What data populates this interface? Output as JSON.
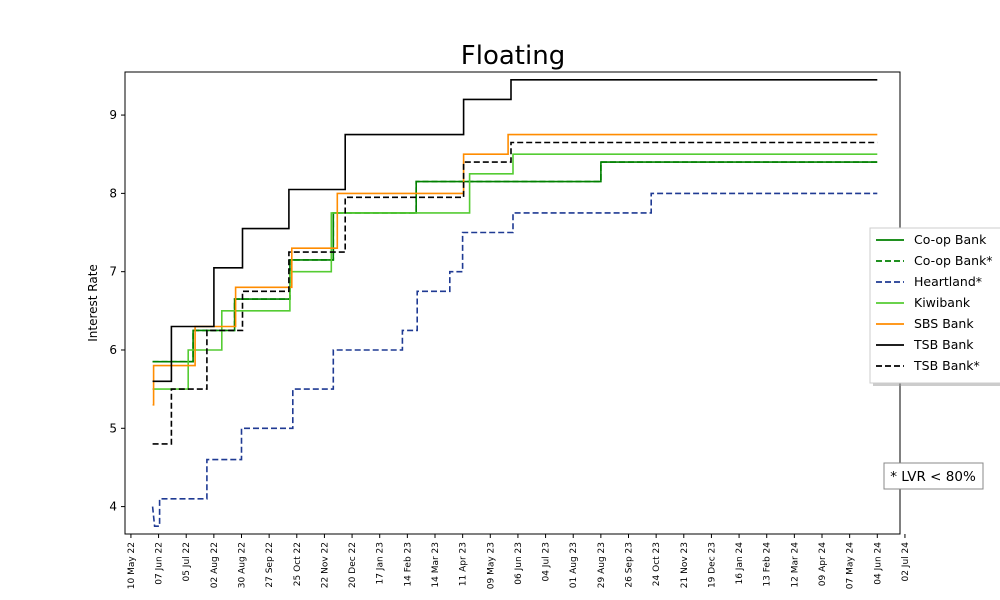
{
  "chart_data": {
    "type": "line",
    "title": "Floating",
    "xlabel": "",
    "ylabel": "Interest Rate",
    "ylim": [
      3.65,
      9.55
    ],
    "yticks": [
      4,
      5,
      6,
      7,
      8,
      9
    ],
    "xlim": [
      "2022-05-04",
      "2024-06-27"
    ],
    "xticks": [
      {
        "date": "2022-05-10",
        "label": "10 May 22"
      },
      {
        "date": "2022-06-07",
        "label": "07 Jun 22"
      },
      {
        "date": "2022-07-05",
        "label": "05 Jul 22"
      },
      {
        "date": "2022-08-02",
        "label": "02 Aug 22"
      },
      {
        "date": "2022-08-30",
        "label": "30 Aug 22"
      },
      {
        "date": "2022-09-27",
        "label": "27 Sep 22"
      },
      {
        "date": "2022-10-25",
        "label": "25 Oct 22"
      },
      {
        "date": "2022-11-22",
        "label": "22 Nov 22"
      },
      {
        "date": "2022-12-20",
        "label": "20 Dec 22"
      },
      {
        "date": "2023-01-17",
        "label": "17 Jan 23"
      },
      {
        "date": "2023-02-14",
        "label": "14 Feb 23"
      },
      {
        "date": "2023-03-14",
        "label": "14 Mar 23"
      },
      {
        "date": "2023-04-11",
        "label": "11 Apr 23"
      },
      {
        "date": "2023-05-09",
        "label": "09 May 23"
      },
      {
        "date": "2023-06-06",
        "label": "06 Jun 23"
      },
      {
        "date": "2023-07-04",
        "label": "04 Jul 23"
      },
      {
        "date": "2023-08-01",
        "label": "01 Aug 23"
      },
      {
        "date": "2023-08-29",
        "label": "29 Aug 23"
      },
      {
        "date": "2023-09-26",
        "label": "26 Sep 23"
      },
      {
        "date": "2023-10-24",
        "label": "24 Oct 23"
      },
      {
        "date": "2023-11-21",
        "label": "21 Nov 23"
      },
      {
        "date": "2023-12-19",
        "label": "19 Dec 23"
      },
      {
        "date": "2024-01-16",
        "label": "16 Jan 24"
      },
      {
        "date": "2024-02-13",
        "label": "13 Feb 24"
      },
      {
        "date": "2024-03-12",
        "label": "12 Mar 24"
      },
      {
        "date": "2024-04-09",
        "label": "09 Apr 24"
      },
      {
        "date": "2024-05-07",
        "label": "07 May 24"
      },
      {
        "date": "2024-06-04",
        "label": "04 Jun 24"
      },
      {
        "date": "2024-07-02",
        "label": "02 Jul 24"
      }
    ],
    "legend_position": "right",
    "note": "* LVR < 80%",
    "series": [
      {
        "name": "Co-op Bank",
        "color": "#008000",
        "dash": "solid",
        "points": [
          [
            "2022-06-01",
            5.85
          ],
          [
            "2022-07-12",
            5.85
          ],
          [
            "2022-07-12",
            6.25
          ],
          [
            "2022-08-23",
            6.25
          ],
          [
            "2022-08-23",
            6.65
          ],
          [
            "2022-10-18",
            6.65
          ],
          [
            "2022-10-18",
            7.15
          ],
          [
            "2022-12-01",
            7.15
          ],
          [
            "2022-12-01",
            7.75
          ],
          [
            "2023-02-23",
            7.75
          ],
          [
            "2023-02-23",
            8.15
          ],
          [
            "2023-04-11",
            8.15
          ],
          [
            "2023-04-11",
            8.15
          ],
          [
            "2023-08-29",
            8.15
          ],
          [
            "2023-08-29",
            8.4
          ],
          [
            "2024-06-04",
            8.4
          ]
        ]
      },
      {
        "name": "Co-op Bank*",
        "color": "#008000",
        "dash": "dashed",
        "points": [
          [
            "2022-06-01",
            5.85
          ],
          [
            "2022-07-12",
            5.85
          ],
          [
            "2022-07-12",
            6.25
          ],
          [
            "2022-08-23",
            6.25
          ],
          [
            "2022-08-23",
            6.65
          ],
          [
            "2022-10-18",
            6.65
          ],
          [
            "2022-10-18",
            7.15
          ],
          [
            "2022-12-01",
            7.15
          ],
          [
            "2022-12-01",
            7.75
          ],
          [
            "2023-02-23",
            7.75
          ],
          [
            "2023-02-23",
            8.15
          ],
          [
            "2023-04-11",
            8.15
          ],
          [
            "2023-08-29",
            8.15
          ],
          [
            "2023-08-29",
            8.4
          ],
          [
            "2024-06-04",
            8.4
          ]
        ]
      },
      {
        "name": "Heartland*",
        "color": "#1f3a93",
        "dash": "dashed",
        "points": [
          [
            "2022-06-01",
            4.0
          ],
          [
            "2022-06-03",
            3.75
          ],
          [
            "2022-06-08",
            3.75
          ],
          [
            "2022-06-08",
            4.1
          ],
          [
            "2022-07-26",
            4.1
          ],
          [
            "2022-07-26",
            4.6
          ],
          [
            "2022-08-30",
            4.6
          ],
          [
            "2022-08-30",
            5.0
          ],
          [
            "2022-10-21",
            5.0
          ],
          [
            "2022-10-21",
            5.5
          ],
          [
            "2022-12-01",
            5.5
          ],
          [
            "2022-12-01",
            6.0
          ],
          [
            "2023-02-09",
            6.0
          ],
          [
            "2023-02-09",
            6.25
          ],
          [
            "2023-02-24",
            6.25
          ],
          [
            "2023-02-24",
            6.75
          ],
          [
            "2023-03-29",
            6.75
          ],
          [
            "2023-03-29",
            7.0
          ],
          [
            "2023-04-11",
            7.0
          ],
          [
            "2023-04-11",
            7.5
          ],
          [
            "2023-06-01",
            7.5
          ],
          [
            "2023-06-01",
            7.75
          ],
          [
            "2023-10-19",
            7.75
          ],
          [
            "2023-10-19",
            8.0
          ],
          [
            "2024-06-04",
            8.0
          ]
        ]
      },
      {
        "name": "Kiwibank",
        "color": "#55cc33",
        "dash": "solid",
        "points": [
          [
            "2022-06-01",
            5.5
          ],
          [
            "2022-07-07",
            5.5
          ],
          [
            "2022-07-07",
            6.0
          ],
          [
            "2022-08-10",
            6.0
          ],
          [
            "2022-08-10",
            6.5
          ],
          [
            "2022-10-18",
            6.5
          ],
          [
            "2022-10-18",
            7.0
          ],
          [
            "2022-11-29",
            7.0
          ],
          [
            "2022-11-29",
            7.75
          ],
          [
            "2023-04-18",
            7.75
          ],
          [
            "2023-04-18",
            8.25
          ],
          [
            "2023-06-01",
            8.25
          ],
          [
            "2023-06-01",
            8.5
          ],
          [
            "2024-06-04",
            8.5
          ]
        ]
      },
      {
        "name": "SBS Bank",
        "color": "#ff8c00",
        "dash": "solid",
        "points": [
          [
            "2022-06-01",
            5.3
          ],
          [
            "2022-06-02",
            5.3
          ],
          [
            "2022-06-02",
            5.8
          ],
          [
            "2022-07-14",
            5.8
          ],
          [
            "2022-07-14",
            6.3
          ],
          [
            "2022-08-24",
            6.3
          ],
          [
            "2022-08-24",
            6.8
          ],
          [
            "2022-10-20",
            6.8
          ],
          [
            "2022-10-20",
            7.3
          ],
          [
            "2022-12-05",
            7.3
          ],
          [
            "2022-12-05",
            8.0
          ],
          [
            "2023-04-12",
            8.0
          ],
          [
            "2023-04-12",
            8.5
          ],
          [
            "2023-05-27",
            8.5
          ],
          [
            "2023-05-27",
            8.75
          ],
          [
            "2024-06-04",
            8.75
          ]
        ]
      },
      {
        "name": "TSB Bank",
        "color": "#000000",
        "dash": "solid",
        "points": [
          [
            "2022-06-01",
            5.6
          ],
          [
            "2022-06-20",
            5.6
          ],
          [
            "2022-06-20",
            6.3
          ],
          [
            "2022-08-02",
            6.3
          ],
          [
            "2022-08-02",
            7.05
          ],
          [
            "2022-08-31",
            7.05
          ],
          [
            "2022-08-31",
            7.55
          ],
          [
            "2022-10-17",
            7.55
          ],
          [
            "2022-10-17",
            8.05
          ],
          [
            "2022-12-13",
            8.05
          ],
          [
            "2022-12-13",
            8.75
          ],
          [
            "2023-04-12",
            8.75
          ],
          [
            "2023-04-12",
            9.2
          ],
          [
            "2023-05-30",
            9.2
          ],
          [
            "2023-05-30",
            9.45
          ],
          [
            "2024-06-04",
            9.45
          ]
        ]
      },
      {
        "name": "TSB Bank*",
        "color": "#000000",
        "dash": "dashed",
        "points": [
          [
            "2022-06-01",
            4.8
          ],
          [
            "2022-06-20",
            4.8
          ],
          [
            "2022-06-20",
            5.5
          ],
          [
            "2022-07-26",
            5.5
          ],
          [
            "2022-07-26",
            6.25
          ],
          [
            "2022-08-31",
            6.25
          ],
          [
            "2022-08-31",
            6.75
          ],
          [
            "2022-10-17",
            6.75
          ],
          [
            "2022-10-17",
            7.25
          ],
          [
            "2022-12-13",
            7.25
          ],
          [
            "2022-12-13",
            7.95
          ],
          [
            "2023-04-12",
            7.95
          ],
          [
            "2023-04-12",
            8.4
          ],
          [
            "2023-05-30",
            8.4
          ],
          [
            "2023-05-30",
            8.65
          ],
          [
            "2024-06-04",
            8.65
          ]
        ]
      }
    ]
  }
}
